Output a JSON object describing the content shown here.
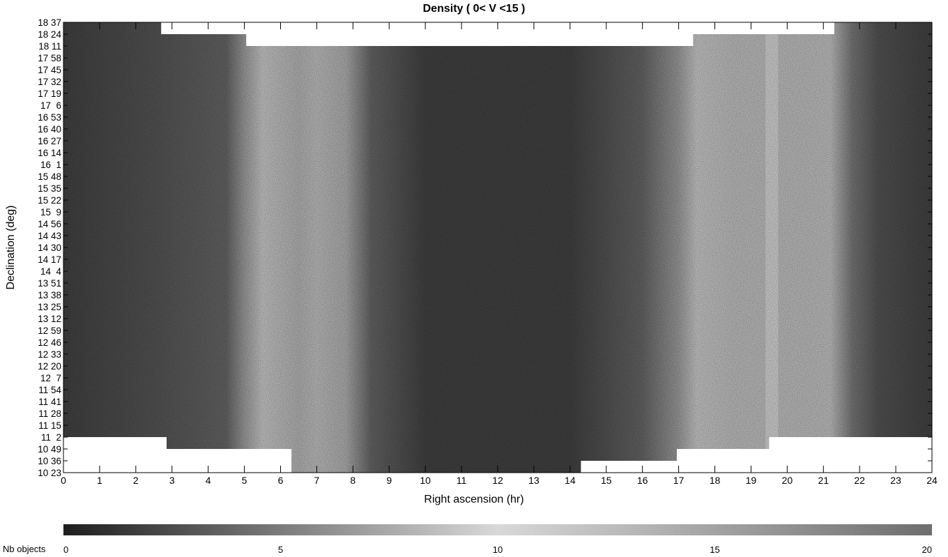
{
  "chart_data": {
    "type": "heatmap",
    "title": "Density ( 0< V <15 )",
    "xlabel": "Right ascension (hr)",
    "ylabel": "Declination (deg)",
    "xlim": [
      0,
      24
    ],
    "ylim_label_range": [
      "10 23",
      "18 37"
    ],
    "x_ticks": [
      "0",
      "1",
      "2",
      "3",
      "4",
      "5",
      "6",
      "7",
      "8",
      "9",
      "10",
      "11",
      "12",
      "13",
      "14",
      "15",
      "16",
      "17",
      "18",
      "19",
      "20",
      "21",
      "22",
      "23",
      "24"
    ],
    "y_ticks": [
      "18 37",
      "18 24",
      "18 11",
      "17 58",
      "17 45",
      "17 32",
      "17 19",
      "17  6",
      "16 53",
      "16 40",
      "16 27",
      "16 14",
      "16  1",
      "15 48",
      "15 35",
      "15 22",
      "15  9",
      "14 56",
      "14 43",
      "14 30",
      "14 17",
      "14  4",
      "13 51",
      "13 38",
      "13 25",
      "13 12",
      "12 59",
      "12 46",
      "12 33",
      "12 20",
      "12  7",
      "11 54",
      "11 41",
      "11 28",
      "11 15",
      "11  2",
      "10 49",
      "10 36",
      "10 23"
    ],
    "colorbar": {
      "label": "Nb objects",
      "min": 0,
      "max": 20,
      "ticks": [
        "0",
        "5",
        "10",
        "15",
        "20"
      ],
      "colors": [
        "#1e1e1e",
        "#d8d8d8",
        "#6e6e6e"
      ]
    },
    "density_profile_by_ra": [
      {
        "ra": 0.0,
        "value": 2
      },
      {
        "ra": 2.5,
        "value": 3
      },
      {
        "ra": 4.5,
        "value": 4
      },
      {
        "ra": 5.0,
        "value": 7
      },
      {
        "ra": 5.5,
        "value": 11
      },
      {
        "ra": 6.5,
        "value": 13
      },
      {
        "ra": 7.0,
        "value": 12
      },
      {
        "ra": 7.8,
        "value": 8
      },
      {
        "ra": 8.5,
        "value": 4
      },
      {
        "ra": 10.0,
        "value": 2
      },
      {
        "ra": 12.0,
        "value": 2
      },
      {
        "ra": 14.0,
        "value": 2
      },
      {
        "ra": 16.0,
        "value": 4
      },
      {
        "ra": 17.0,
        "value": 7
      },
      {
        "ra": 17.5,
        "value": 11
      },
      {
        "ra": 18.5,
        "value": 12
      },
      {
        "ra": 19.5,
        "value": 12
      },
      {
        "ra": 20.5,
        "value": 12
      },
      {
        "ra": 21.2,
        "value": 9
      },
      {
        "ra": 21.8,
        "value": 5
      },
      {
        "ra": 22.5,
        "value": 3
      },
      {
        "ra": 24.0,
        "value": 2
      }
    ],
    "footprint_top_by_ra": [
      {
        "ra_from": 0.0,
        "ra_to": 2.7,
        "dec": "18 37"
      },
      {
        "ra_from": 2.7,
        "ra_to": 5.05,
        "dec": "18 24"
      },
      {
        "ra_from": 5.05,
        "ra_to": 17.4,
        "dec": "18 11"
      },
      {
        "ra_from": 17.4,
        "ra_to": 21.3,
        "dec": "18 24"
      },
      {
        "ra_from": 21.3,
        "ra_to": 24.0,
        "dec": "18 37"
      }
    ],
    "footprint_bottom_by_ra": [
      {
        "ra_from": 0.0,
        "ra_to": 2.85,
        "dec": "11  2"
      },
      {
        "ra_from": 2.85,
        "ra_to": 6.3,
        "dec": "10 49"
      },
      {
        "ra_from": 6.3,
        "ra_to": 14.3,
        "dec": "10 23"
      },
      {
        "ra_from": 14.3,
        "ra_to": 16.95,
        "dec": "10 36"
      },
      {
        "ra_from": 16.95,
        "ra_to": 19.5,
        "dec": "10 49"
      },
      {
        "ra_from": 19.5,
        "ra_to": 24.0,
        "dec": "11  2"
      }
    ],
    "bands": [
      {
        "ra_from": 19.4,
        "ra_to": 19.75,
        "value": 10
      }
    ],
    "grid": false
  }
}
